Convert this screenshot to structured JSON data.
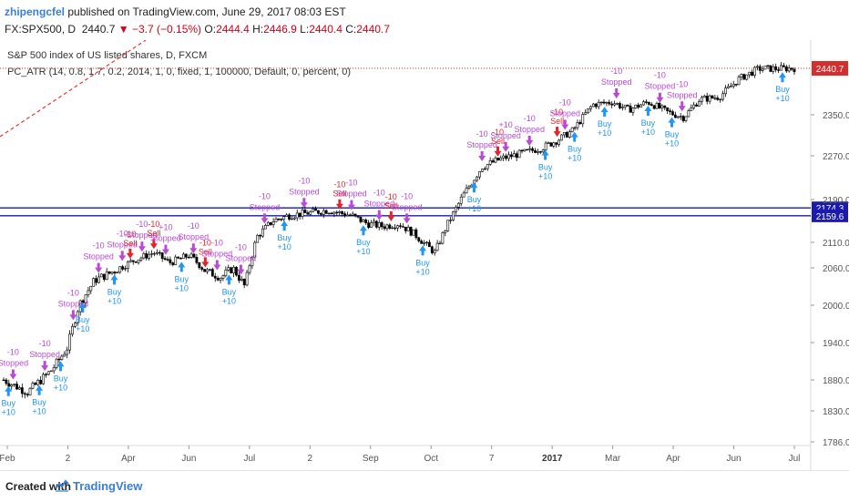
{
  "header": {
    "author": "zhipengcfel",
    "published": "published on TradingView.com, June 29, 2017 08:03 EST",
    "symbol": "FX:SPX500, D",
    "last": "2440.7",
    "change": "−3.7 (−0.15%)",
    "o_label": "O:",
    "o": "2444.4",
    "h_label": "H:",
    "h": "2446.9",
    "l_label": "L:",
    "l": "2440.4",
    "c_label": "C:",
    "c": "2440.7"
  },
  "legend": {
    "line1": "S&P 500 index of US listed shares, D, FXCM",
    "line2": "PC_ATR (14, 0.8, 1.7, 0.2, 2014, 1, 0, fixed, 1, 100000, Default, 0, percent, 0)"
  },
  "chart_data": {
    "type": "candlestick",
    "y_ticks": [
      "2350.0",
      "2270.0",
      "2190.0",
      "2110.0",
      "2060.0",
      "2000.0",
      "1940.0",
      "1880.0",
      "1830.0",
      "1786.0"
    ],
    "y_tick_values": [
      2350,
      2270,
      2190,
      2110,
      2060,
      2000,
      1940,
      1880,
      1830,
      1786
    ],
    "x_ticks": [
      "Feb",
      "2",
      "Apr",
      "Jun",
      "Jul",
      "2",
      "Sep",
      "Oct",
      "7",
      "2017",
      "Mar",
      "Apr",
      "Jun",
      "Jul"
    ],
    "x_tick_bold": [
      false,
      false,
      false,
      false,
      false,
      false,
      false,
      false,
      false,
      true,
      false,
      false,
      false,
      false
    ],
    "price_label": "2440.7",
    "price_value": 2440.7,
    "hlines": [
      {
        "label": "2174.3",
        "value": 2174.3,
        "color": "#1a1ab0"
      },
      {
        "label": "2159.6",
        "value": 2159.6,
        "color": "#1a1ab0"
      }
    ],
    "close_series": [
      [
        0.0,
        1880
      ],
      [
        0.03,
        1860
      ],
      [
        0.06,
        1895
      ],
      [
        0.08,
        1930
      ],
      [
        0.095,
        2000
      ],
      [
        0.115,
        2040
      ],
      [
        0.14,
        2055
      ],
      [
        0.165,
        2075
      ],
      [
        0.19,
        2090
      ],
      [
        0.21,
        2070
      ],
      [
        0.235,
        2085
      ],
      [
        0.255,
        2055
      ],
      [
        0.275,
        2045
      ],
      [
        0.29,
        2060
      ],
      [
        0.305,
        2030
      ],
      [
        0.32,
        2120
      ],
      [
        0.34,
        2150
      ],
      [
        0.36,
        2160
      ],
      [
        0.385,
        2165
      ],
      [
        0.41,
        2170
      ],
      [
        0.44,
        2160
      ],
      [
        0.46,
        2145
      ],
      [
        0.48,
        2140
      ],
      [
        0.5,
        2145
      ],
      [
        0.52,
        2125
      ],
      [
        0.545,
        2090
      ],
      [
        0.56,
        2140
      ],
      [
        0.58,
        2195
      ],
      [
        0.605,
        2250
      ],
      [
        0.63,
        2265
      ],
      [
        0.655,
        2275
      ],
      [
        0.68,
        2285
      ],
      [
        0.7,
        2300
      ],
      [
        0.72,
        2320
      ],
      [
        0.745,
        2370
      ],
      [
        0.77,
        2375
      ],
      [
        0.79,
        2360
      ],
      [
        0.815,
        2375
      ],
      [
        0.84,
        2355
      ],
      [
        0.86,
        2345
      ],
      [
        0.88,
        2380
      ],
      [
        0.905,
        2385
      ],
      [
        0.93,
        2420
      ],
      [
        0.955,
        2440
      ],
      [
        0.975,
        2440
      ],
      [
        1.0,
        2440.7
      ]
    ],
    "signals": [
      {
        "t": 0.006,
        "label": "Buy",
        "pnl": "+10",
        "kind": "buy"
      },
      {
        "t": 0.012,
        "label": "Stopped",
        "pnl": "-10",
        "kind": "stopped"
      },
      {
        "t": 0.045,
        "label": "Buy",
        "pnl": "+10",
        "kind": "buy"
      },
      {
        "t": 0.052,
        "label": "Stopped",
        "pnl": "-10",
        "kind": "stopped"
      },
      {
        "t": 0.072,
        "label": "Buy",
        "pnl": "+10",
        "kind": "buy"
      },
      {
        "t": 0.088,
        "label": "Stopped",
        "pnl": "-10",
        "kind": "stopped"
      },
      {
        "t": 0.1,
        "label": "Buy",
        "pnl": "+10",
        "kind": "buy"
      },
      {
        "t": 0.12,
        "label": "Stopped",
        "pnl": "-10",
        "kind": "stopped"
      },
      {
        "t": 0.14,
        "label": "Buy",
        "pnl": "+10",
        "kind": "buy"
      },
      {
        "t": 0.15,
        "label": "Stopped",
        "pnl": "-10",
        "kind": "stopped"
      },
      {
        "t": 0.16,
        "label": "Sell",
        "pnl": "-10",
        "kind": "sell"
      },
      {
        "t": 0.175,
        "label": "Stopped",
        "pnl": "-10",
        "kind": "stopped"
      },
      {
        "t": 0.19,
        "label": "Sell",
        "pnl": "-10",
        "kind": "sell"
      },
      {
        "t": 0.205,
        "label": "Stopped",
        "pnl": "+10",
        "kind": "stopped"
      },
      {
        "t": 0.225,
        "label": "Buy",
        "pnl": "+10",
        "kind": "buy"
      },
      {
        "t": 0.24,
        "label": "Stopped",
        "pnl": "-10",
        "kind": "stopped"
      },
      {
        "t": 0.255,
        "label": "Sell",
        "pnl": "-10",
        "kind": "sell"
      },
      {
        "t": 0.27,
        "label": "Stopped",
        "pnl": "-10",
        "kind": "stopped"
      },
      {
        "t": 0.285,
        "label": "Buy",
        "pnl": "+10",
        "kind": "buy"
      },
      {
        "t": 0.3,
        "label": "Stopped",
        "pnl": "-10",
        "kind": "stopped"
      },
      {
        "t": 0.33,
        "label": "Stopped",
        "pnl": "-10",
        "kind": "stopped"
      },
      {
        "t": 0.355,
        "label": "Buy",
        "pnl": "+10",
        "kind": "buy"
      },
      {
        "t": 0.38,
        "label": "Stopped",
        "pnl": "-10",
        "kind": "stopped"
      },
      {
        "t": 0.425,
        "label": "Sell",
        "pnl": "-10",
        "kind": "sell"
      },
      {
        "t": 0.44,
        "label": "Stopped",
        "pnl": "-10",
        "kind": "stopped"
      },
      {
        "t": 0.455,
        "label": "Buy",
        "pnl": "+10",
        "kind": "buy"
      },
      {
        "t": 0.475,
        "label": "Stopped",
        "pnl": "-10",
        "kind": "stopped"
      },
      {
        "t": 0.49,
        "label": "Sell",
        "pnl": "-10",
        "kind": "sell"
      },
      {
        "t": 0.51,
        "label": "Stopped",
        "pnl": "-10",
        "kind": "stopped"
      },
      {
        "t": 0.53,
        "label": "Buy",
        "pnl": "+10",
        "kind": "buy"
      },
      {
        "t": 0.595,
        "label": "Buy",
        "pnl": "+10",
        "kind": "buy"
      },
      {
        "t": 0.605,
        "label": "Stopped",
        "pnl": "-10",
        "kind": "stopped"
      },
      {
        "t": 0.625,
        "label": "Sell",
        "pnl": "-10",
        "kind": "sell"
      },
      {
        "t": 0.635,
        "label": "Stopped",
        "pnl": "+10",
        "kind": "stopped"
      },
      {
        "t": 0.665,
        "label": "Stopped",
        "pnl": "-10",
        "kind": "stopped"
      },
      {
        "t": 0.685,
        "label": "Buy",
        "pnl": "+10",
        "kind": "buy"
      },
      {
        "t": 0.7,
        "label": "Sell",
        "pnl": "-10",
        "kind": "sell"
      },
      {
        "t": 0.71,
        "label": "Stopped",
        "pnl": "-10",
        "kind": "stopped"
      },
      {
        "t": 0.722,
        "label": "Buy",
        "pnl": "+10",
        "kind": "buy"
      },
      {
        "t": 0.76,
        "label": "Buy",
        "pnl": "+10",
        "kind": "buy"
      },
      {
        "t": 0.775,
        "label": "Stopped",
        "pnl": "-10",
        "kind": "stopped"
      },
      {
        "t": 0.815,
        "label": "Buy",
        "pnl": "+10",
        "kind": "buy"
      },
      {
        "t": 0.83,
        "label": "Stopped",
        "pnl": "-10",
        "kind": "stopped"
      },
      {
        "t": 0.845,
        "label": "Buy",
        "pnl": "+10",
        "kind": "buy"
      },
      {
        "t": 0.858,
        "label": "Stopped",
        "pnl": "-10",
        "kind": "stopped"
      },
      {
        "t": 0.985,
        "label": "Buy",
        "pnl": "+10",
        "kind": "buy"
      }
    ]
  },
  "footer": {
    "created_with": "Created with",
    "brand": "TradingView"
  },
  "colors": {
    "buy": "#2196f3",
    "sell": "#e3242b",
    "stopped": "#b84ad8",
    "candle": "#000000",
    "hline": "#1a1ab0",
    "price_tag": "#d32f2f",
    "trend": "#e53935"
  }
}
